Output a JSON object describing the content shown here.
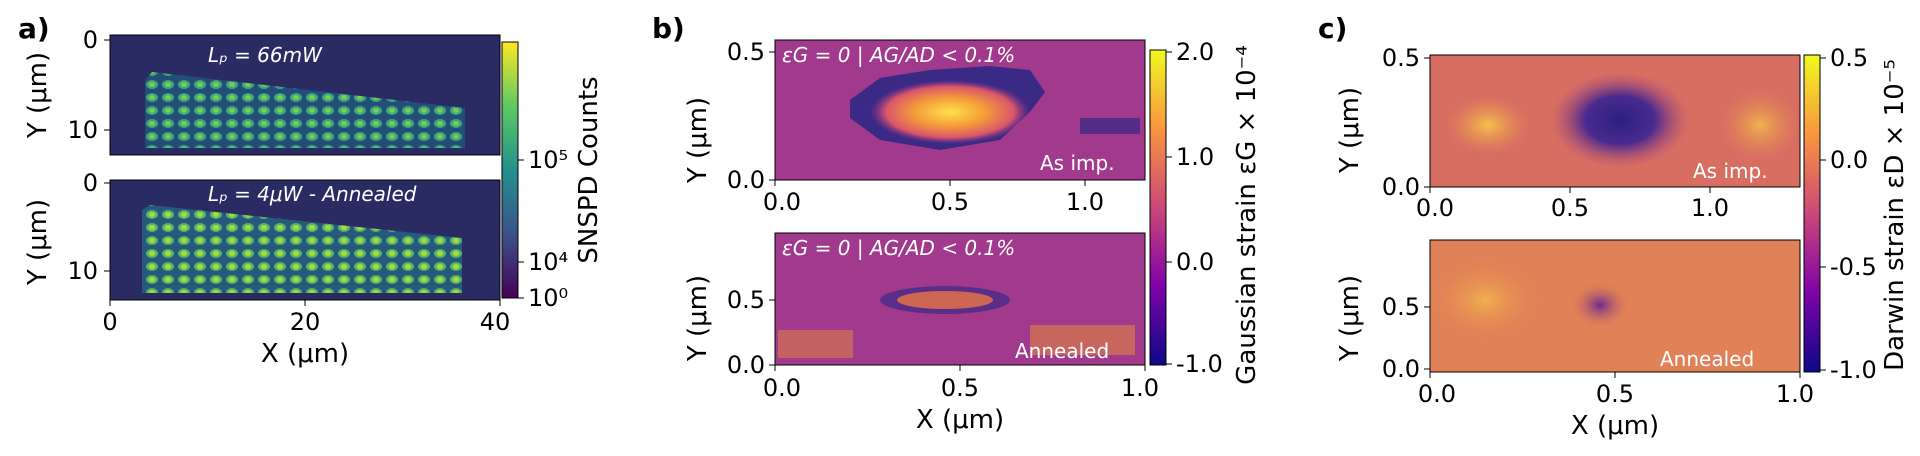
{
  "panels": {
    "a": {
      "letter": "a)",
      "top": {
        "annotation": "Lₚ = 66mW",
        "y_label": "Y (μm)",
        "y_ticks": [
          "0",
          "10"
        ]
      },
      "bottom": {
        "annotation": "Lₚ = 4μW - Annealed",
        "y_label": "Y (μm)",
        "y_ticks": [
          "0",
          "10"
        ]
      },
      "x_label": "X (μm)",
      "x_ticks": [
        "0",
        "20",
        "40"
      ],
      "colorbar": {
        "label": "SNSPD Counts",
        "ticks": [
          "10⁵",
          "10⁴",
          "10⁰"
        ],
        "scale": "log",
        "colormap": "viridis"
      }
    },
    "b": {
      "letter": "b)",
      "top": {
        "annotation": "εG = 0 | AG/AD < 0.1%",
        "corner_label": "As imp.",
        "y_label": "Y (μm)",
        "y_ticks": [
          "0.5",
          "0.0"
        ],
        "x_ticks": [
          "0.0",
          "0.5",
          "1.0"
        ]
      },
      "bottom": {
        "annotation": "εG = 0 | AG/AD < 0.1%",
        "corner_label": "Annealed",
        "y_label": "Y (μm)",
        "y_ticks": [
          "0.5",
          "0.0"
        ]
      },
      "x_label": "X (μm)",
      "x_ticks": [
        "0.0",
        "0.5",
        "1.0"
      ],
      "colorbar": {
        "label": "Gaussian strain εG × 10⁻⁴",
        "ticks": [
          "2.0",
          "1.0",
          "0.0",
          "-1.0"
        ],
        "colormap": "plasma"
      }
    },
    "c": {
      "letter": "c)",
      "top": {
        "corner_label": "As imp.",
        "y_label": "Y (μm)",
        "y_ticks": [
          "0.5",
          "0.0"
        ],
        "x_ticks": [
          "0.0",
          "0.5",
          "1.0"
        ]
      },
      "bottom": {
        "corner_label": "Annealed",
        "y_label": "Y (μm)",
        "y_ticks": [
          "0.5",
          "0.0"
        ]
      },
      "x_label": "X (μm)",
      "x_ticks": [
        "0.0",
        "0.5",
        "1.0"
      ],
      "colorbar": {
        "label": "Darwin strain εD × 10⁻⁵",
        "ticks": [
          "0.5",
          "0.0",
          "-0.5",
          "-1.0"
        ],
        "colormap": "plasma"
      }
    }
  },
  "colors": {
    "viridis_bg": "#2f1b5c",
    "plasma_bg": "#8a2a88",
    "plasma_hi": "#f5e44a",
    "plasma_lo": "#2a1a78",
    "text_on_map": "#ffffff"
  }
}
